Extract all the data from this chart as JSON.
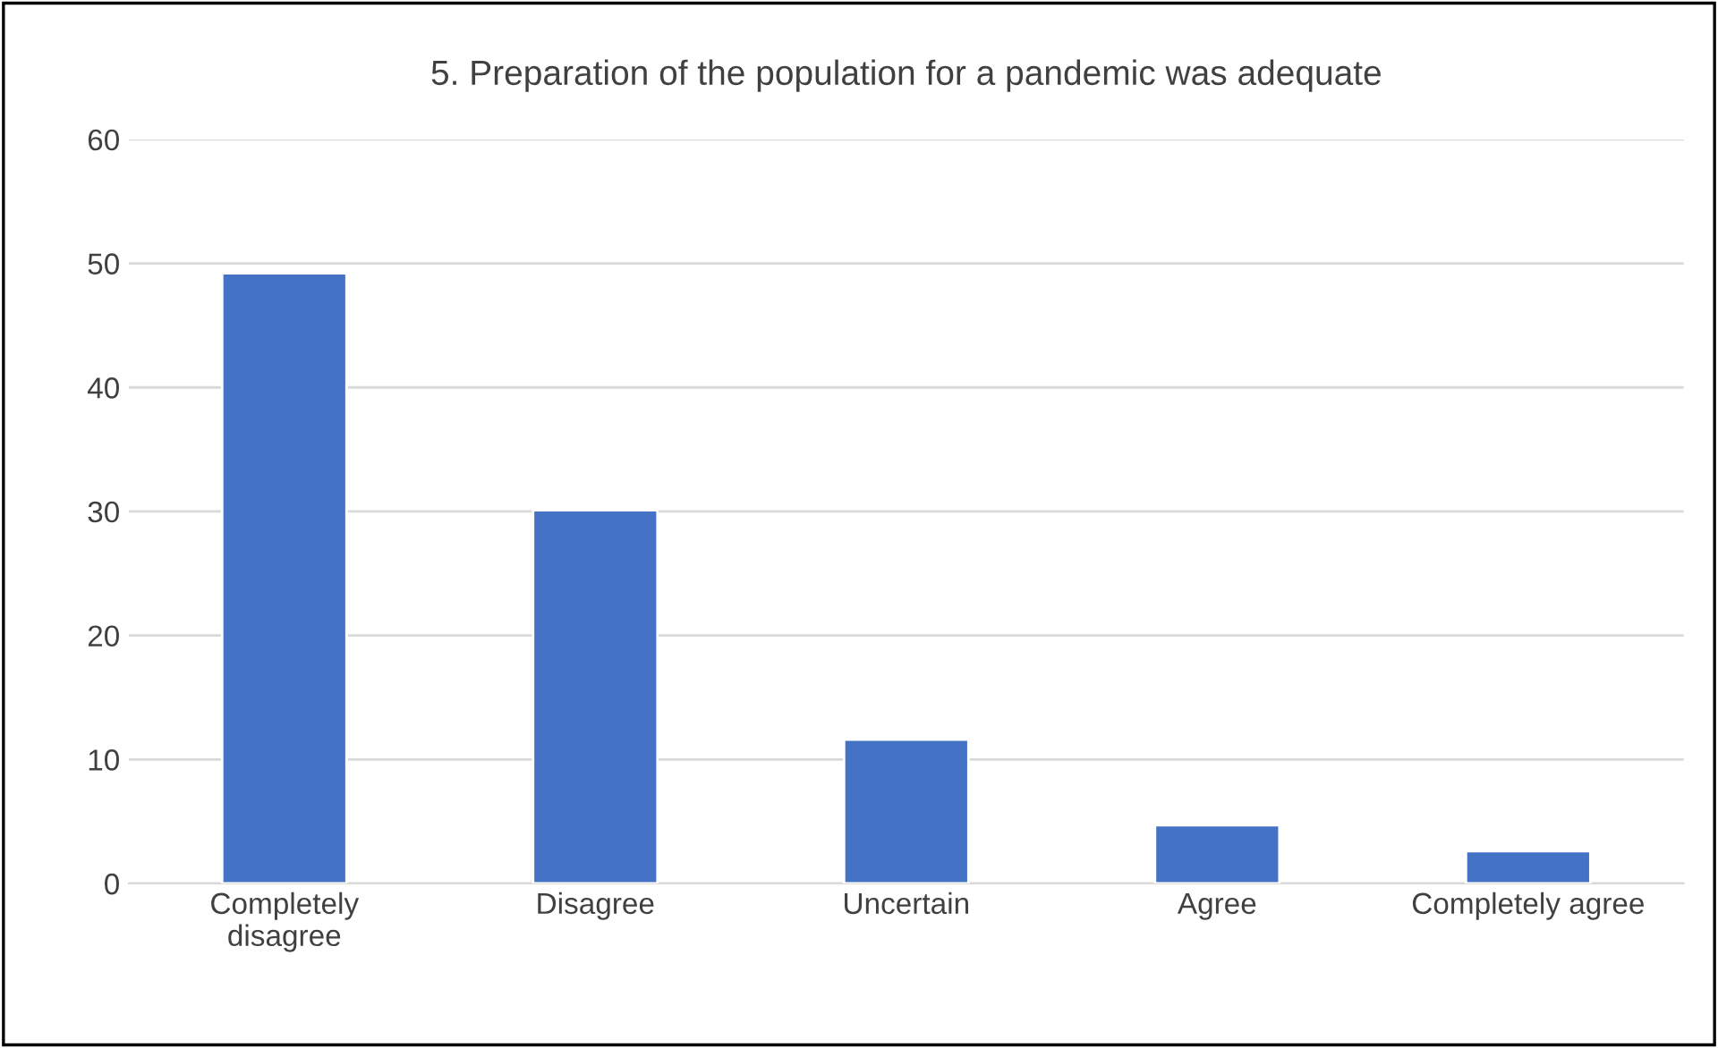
{
  "chart_data": {
    "type": "bar",
    "title": "5. Preparation of the population for a pandemic was adequate",
    "categories": [
      "Completely\ndisagree",
      "Disagree",
      "Uncertain",
      "Agree",
      "Completely agree"
    ],
    "values": [
      49.2,
      30.1,
      11.6,
      4.7,
      2.6
    ],
    "color": "#4472c4",
    "ylim": [
      0,
      60
    ],
    "yticks": [
      0,
      10,
      20,
      30,
      40,
      50,
      60
    ],
    "grid": "y"
  }
}
